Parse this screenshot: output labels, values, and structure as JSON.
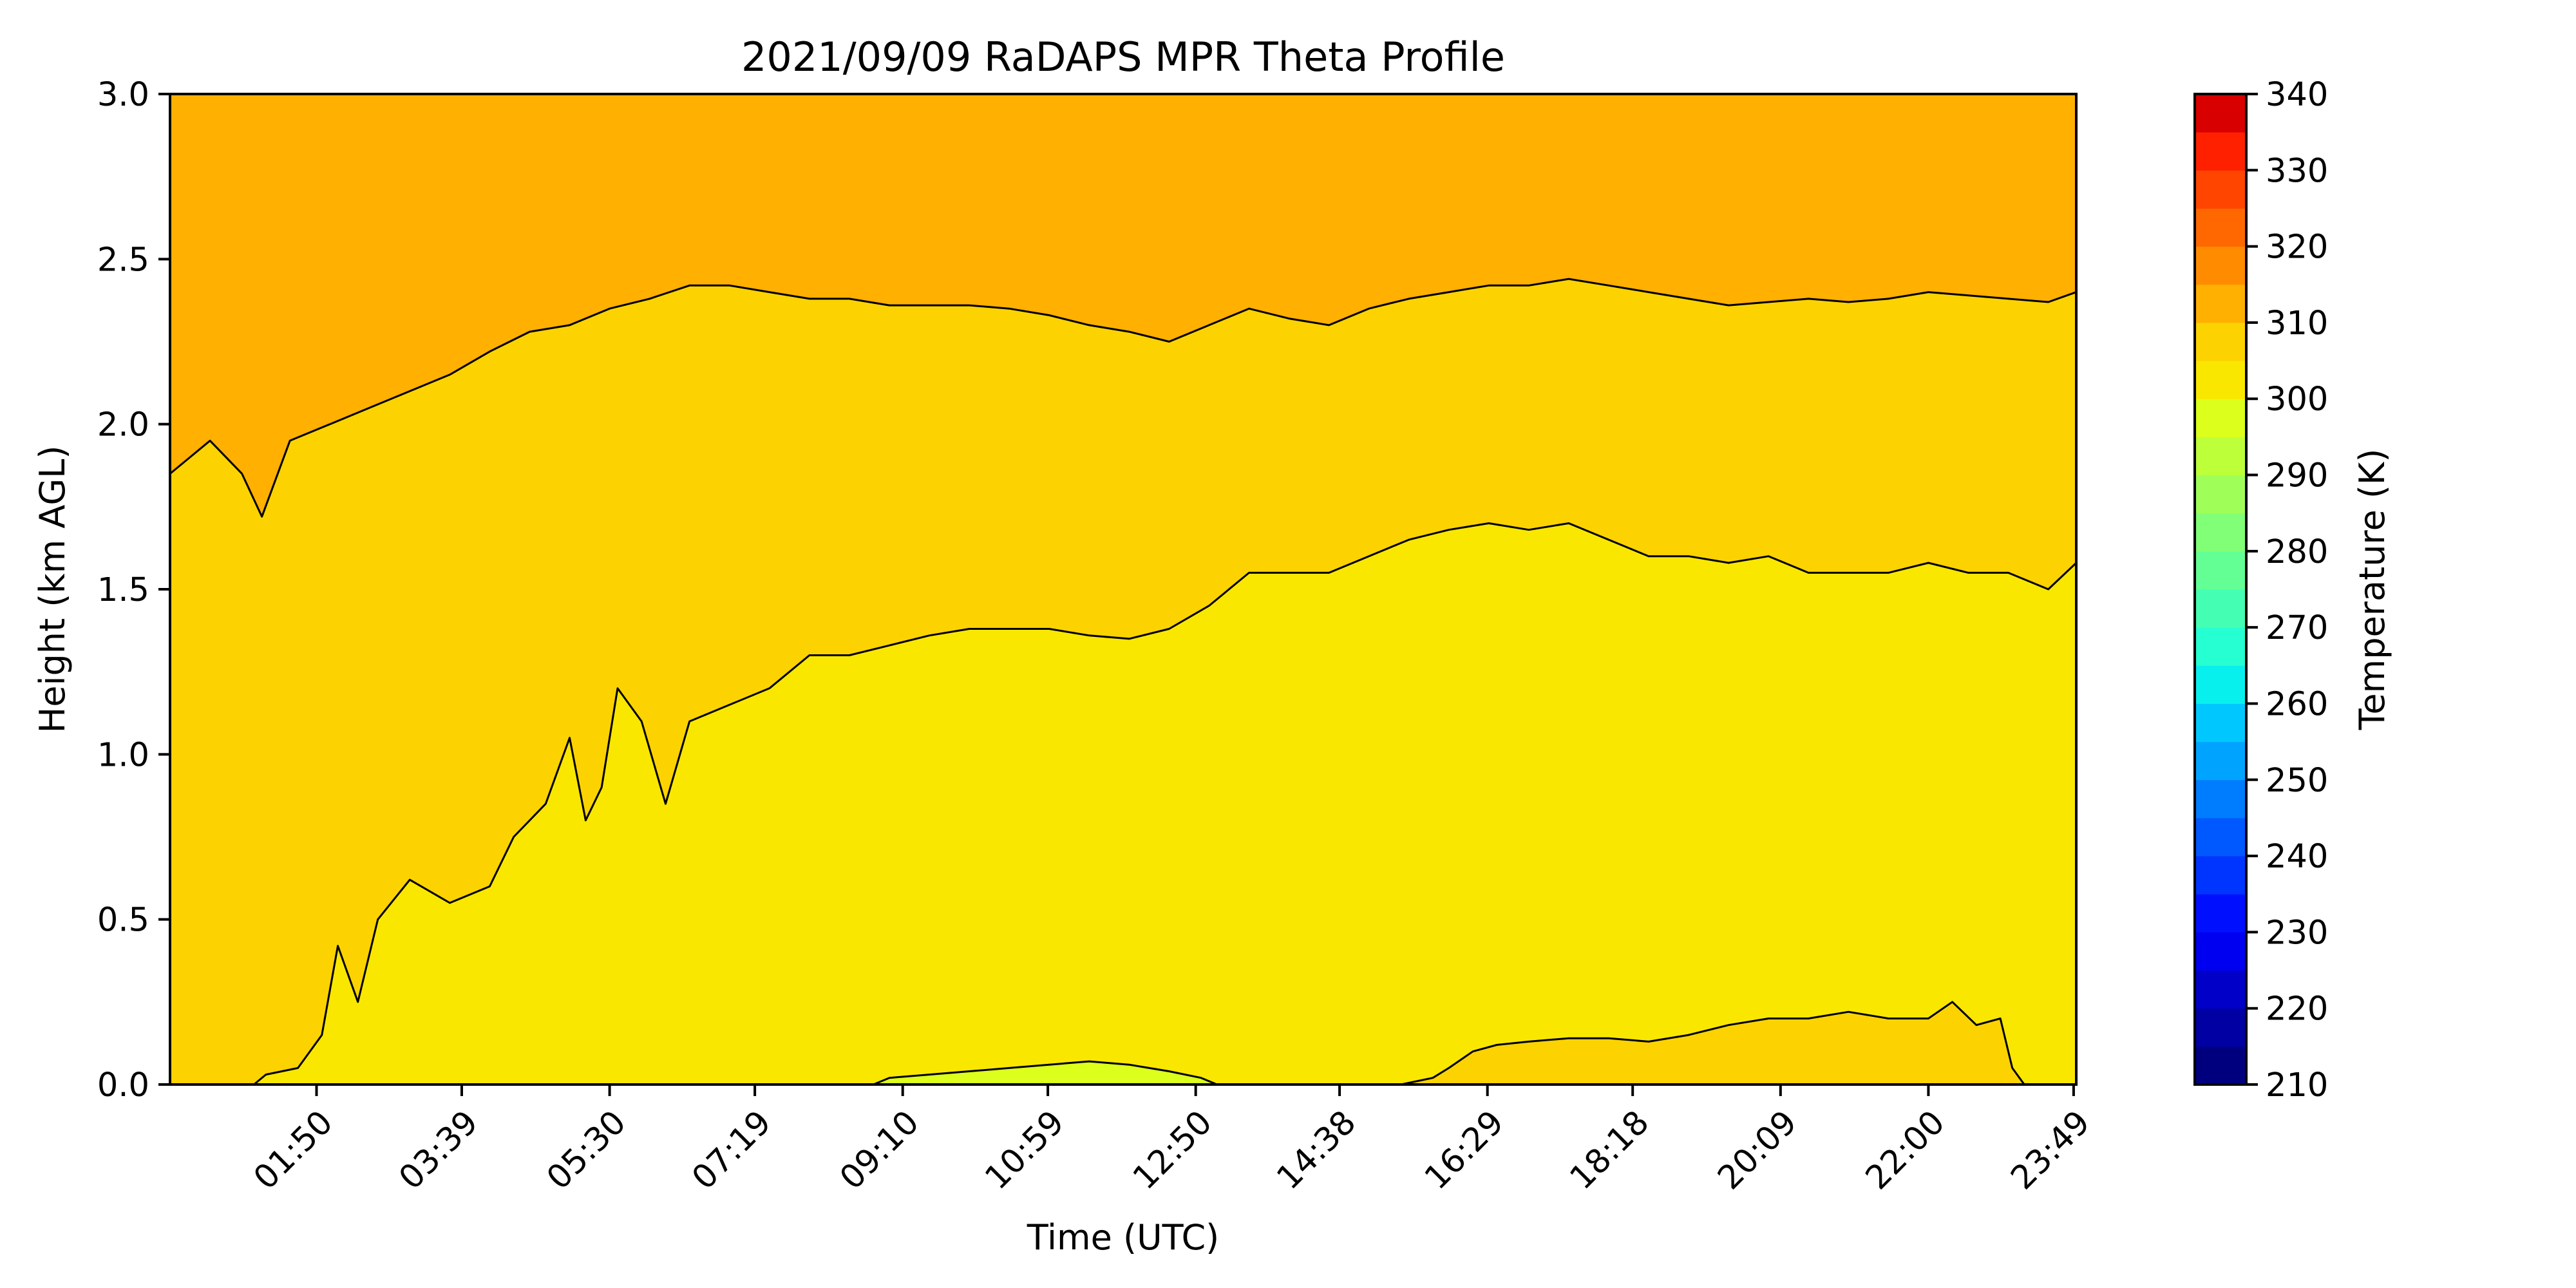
{
  "chart_data": {
    "type": "heatmap",
    "title": "2021/09/09 RaDAPS MPR Theta Profile",
    "xlabel": "Time (UTC)",
    "ylabel": "Height (km AGL)",
    "colorbar_label": "Temperature (K)",
    "x_tick_labels": [
      "01:50",
      "03:39",
      "05:30",
      "07:19",
      "09:10",
      "10:59",
      "12:50",
      "14:38",
      "16:29",
      "18:18",
      "20:09",
      "22:00",
      "23:49"
    ],
    "x_tick_hours": [
      1.833,
      3.65,
      5.5,
      7.317,
      9.167,
      10.983,
      12.833,
      14.633,
      16.483,
      18.3,
      20.15,
      22.0,
      23.817
    ],
    "xlim_hours": [
      0.0,
      23.85
    ],
    "ylim": [
      0.0,
      3.0
    ],
    "y_ticks": [
      "0.0",
      "0.5",
      "1.0",
      "1.5",
      "2.0",
      "2.5",
      "3.0"
    ],
    "colorbar_ticks": [
      "210",
      "220",
      "230",
      "240",
      "250",
      "260",
      "270",
      "280",
      "290",
      "300",
      "310",
      "320",
      "330",
      "340"
    ],
    "colorbar_range": [
      210,
      340
    ],
    "colorbar_step": 5,
    "colorbar_colors": [
      "#00007f",
      "#0000a3",
      "#0000c8",
      "#0000f1",
      "#0010ff",
      "#0034ff",
      "#0058ff",
      "#007cff",
      "#00a4ff",
      "#00c8ff",
      "#08f0ee",
      "#26ffd1",
      "#44ffb3",
      "#63ff94",
      "#81ff76",
      "#9fff58",
      "#bdff39",
      "#dcff1b",
      "#fae700",
      "#fcd300",
      "#ffb000",
      "#ff8c00",
      "#ff6800",
      "#ff4500",
      "#ff2000",
      "#d80000",
      "#b20000"
    ],
    "contour_levels": [
      {
        "level": 310,
        "points": [
          [
            0.0,
            1.85
          ],
          [
            0.5,
            1.95
          ],
          [
            0.9,
            1.85
          ],
          [
            1.15,
            1.72
          ],
          [
            1.5,
            1.95
          ],
          [
            2.0,
            2.0
          ],
          [
            2.5,
            2.05
          ],
          [
            3.0,
            2.1
          ],
          [
            3.5,
            2.15
          ],
          [
            4.0,
            2.22
          ],
          [
            4.5,
            2.28
          ],
          [
            5.0,
            2.3
          ],
          [
            5.5,
            2.35
          ],
          [
            6.0,
            2.38
          ],
          [
            6.5,
            2.42
          ],
          [
            7.0,
            2.42
          ],
          [
            7.5,
            2.4
          ],
          [
            8.0,
            2.38
          ],
          [
            8.5,
            2.38
          ],
          [
            9.0,
            2.36
          ],
          [
            9.5,
            2.36
          ],
          [
            10.0,
            2.36
          ],
          [
            10.5,
            2.35
          ],
          [
            11.0,
            2.33
          ],
          [
            11.5,
            2.3
          ],
          [
            12.0,
            2.28
          ],
          [
            12.5,
            2.25
          ],
          [
            13.0,
            2.3
          ],
          [
            13.5,
            2.35
          ],
          [
            14.0,
            2.32
          ],
          [
            14.5,
            2.3
          ],
          [
            15.0,
            2.35
          ],
          [
            15.5,
            2.38
          ],
          [
            16.0,
            2.4
          ],
          [
            16.5,
            2.42
          ],
          [
            17.0,
            2.42
          ],
          [
            17.5,
            2.44
          ],
          [
            18.0,
            2.42
          ],
          [
            18.5,
            2.4
          ],
          [
            19.0,
            2.38
          ],
          [
            19.5,
            2.36
          ],
          [
            20.0,
            2.37
          ],
          [
            20.5,
            2.38
          ],
          [
            21.0,
            2.37
          ],
          [
            21.5,
            2.38
          ],
          [
            22.0,
            2.4
          ],
          [
            22.5,
            2.39
          ],
          [
            23.0,
            2.38
          ],
          [
            23.5,
            2.37
          ],
          [
            23.85,
            2.4
          ]
        ]
      },
      {
        "level": 305,
        "points": [
          [
            0.0,
            0.0
          ],
          [
            1.05,
            0.0
          ],
          [
            1.2,
            0.03
          ],
          [
            1.6,
            0.05
          ],
          [
            1.9,
            0.15
          ],
          [
            2.1,
            0.42
          ],
          [
            2.35,
            0.25
          ],
          [
            2.6,
            0.5
          ],
          [
            3.0,
            0.62
          ],
          [
            3.5,
            0.55
          ],
          [
            4.0,
            0.6
          ],
          [
            4.3,
            0.75
          ],
          [
            4.7,
            0.85
          ],
          [
            5.0,
            1.05
          ],
          [
            5.2,
            0.8
          ],
          [
            5.4,
            0.9
          ],
          [
            5.6,
            1.2
          ],
          [
            5.9,
            1.1
          ],
          [
            6.2,
            0.85
          ],
          [
            6.5,
            1.1
          ],
          [
            7.0,
            1.15
          ],
          [
            7.5,
            1.2
          ],
          [
            8.0,
            1.3
          ],
          [
            8.5,
            1.3
          ],
          [
            9.0,
            1.33
          ],
          [
            9.5,
            1.36
          ],
          [
            10.0,
            1.38
          ],
          [
            10.5,
            1.38
          ],
          [
            11.0,
            1.38
          ],
          [
            11.5,
            1.36
          ],
          [
            12.0,
            1.35
          ],
          [
            12.5,
            1.38
          ],
          [
            13.0,
            1.45
          ],
          [
            13.5,
            1.55
          ],
          [
            14.0,
            1.55
          ],
          [
            14.5,
            1.55
          ],
          [
            15.0,
            1.6
          ],
          [
            15.5,
            1.65
          ],
          [
            16.0,
            1.68
          ],
          [
            16.5,
            1.7
          ],
          [
            17.0,
            1.68
          ],
          [
            17.5,
            1.7
          ],
          [
            18.0,
            1.65
          ],
          [
            18.5,
            1.6
          ],
          [
            19.0,
            1.6
          ],
          [
            19.5,
            1.58
          ],
          [
            20.0,
            1.6
          ],
          [
            20.5,
            1.55
          ],
          [
            21.0,
            1.55
          ],
          [
            21.5,
            1.55
          ],
          [
            22.0,
            1.58
          ],
          [
            22.5,
            1.55
          ],
          [
            23.0,
            1.55
          ],
          [
            23.5,
            1.5
          ],
          [
            23.85,
            1.58
          ]
        ]
      },
      {
        "level": 300,
        "points": [
          [
            15.4,
            0.0
          ],
          [
            15.8,
            0.02
          ],
          [
            16.0,
            0.05
          ],
          [
            16.3,
            0.1
          ],
          [
            16.6,
            0.12
          ],
          [
            17.0,
            0.13
          ],
          [
            17.5,
            0.14
          ],
          [
            18.0,
            0.14
          ],
          [
            18.5,
            0.13
          ],
          [
            19.0,
            0.15
          ],
          [
            19.5,
            0.18
          ],
          [
            20.0,
            0.2
          ],
          [
            20.5,
            0.2
          ],
          [
            21.0,
            0.22
          ],
          [
            21.5,
            0.2
          ],
          [
            22.0,
            0.2
          ],
          [
            22.3,
            0.25
          ],
          [
            22.6,
            0.18
          ],
          [
            22.9,
            0.2
          ],
          [
            23.05,
            0.05
          ],
          [
            23.2,
            0.0
          ]
        ]
      },
      {
        "level": 295,
        "points": [
          [
            8.8,
            0.0
          ],
          [
            9.0,
            0.02
          ],
          [
            9.5,
            0.03
          ],
          [
            10.0,
            0.04
          ],
          [
            10.5,
            0.05
          ],
          [
            11.0,
            0.06
          ],
          [
            11.5,
            0.07
          ],
          [
            12.0,
            0.06
          ],
          [
            12.5,
            0.04
          ],
          [
            12.9,
            0.02
          ],
          [
            13.1,
            0.0
          ]
        ]
      }
    ]
  }
}
